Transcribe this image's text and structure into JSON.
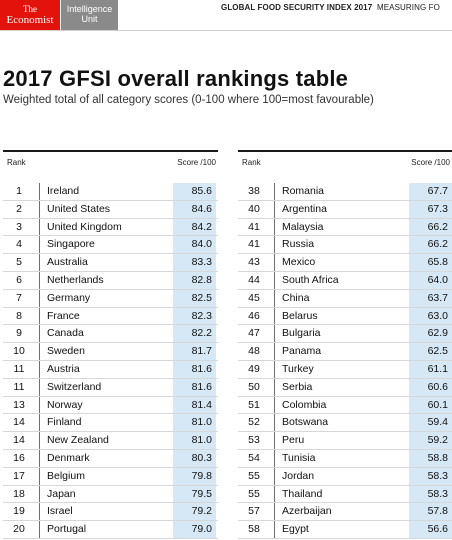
{
  "header": {
    "economist_line1": "The",
    "economist_line2": "Economist",
    "eiu_line1": "Intelligence",
    "eiu_line2": "Unit",
    "doc_title": "GLOBAL FOOD SECURITY INDEX 2017",
    "doc_subtitle": "MEASURING FO"
  },
  "title": "2017 GFSI overall rankings table",
  "subtitle": "Weighted total of all category scores (0-100 where 100=most favourable)",
  "columns": {
    "rank": "Rank",
    "score": "Score /100"
  },
  "colors": {
    "economist_red": "#e3120b",
    "eiu_grey": "#8a8a8a",
    "score_bg": "#d6e8f6"
  },
  "left_table": [
    {
      "rank": "1",
      "country": "Ireland",
      "score": "85.6"
    },
    {
      "rank": "2",
      "country": "United States",
      "score": "84.6"
    },
    {
      "rank": "3",
      "country": "United Kingdom",
      "score": "84.2"
    },
    {
      "rank": "4",
      "country": "Singapore",
      "score": "84.0"
    },
    {
      "rank": "5",
      "country": "Australia",
      "score": "83.3"
    },
    {
      "rank": "6",
      "country": "Netherlands",
      "score": "82.8"
    },
    {
      "rank": "7",
      "country": "Germany",
      "score": "82.5"
    },
    {
      "rank": "8",
      "country": "France",
      "score": "82.3"
    },
    {
      "rank": "9",
      "country": "Canada",
      "score": "82.2"
    },
    {
      "rank": "10",
      "country": "Sweden",
      "score": "81.7"
    },
    {
      "rank": "11",
      "country": "Austria",
      "score": "81.6"
    },
    {
      "rank": "11",
      "country": "Switzerland",
      "score": "81.6"
    },
    {
      "rank": "13",
      "country": "Norway",
      "score": "81.4"
    },
    {
      "rank": "14",
      "country": "Finland",
      "score": "81.0"
    },
    {
      "rank": "14",
      "country": "New Zealand",
      "score": "81.0"
    },
    {
      "rank": "16",
      "country": "Denmark",
      "score": "80.3"
    },
    {
      "rank": "17",
      "country": "Belgium",
      "score": "79.8"
    },
    {
      "rank": "18",
      "country": "Japan",
      "score": "79.5"
    },
    {
      "rank": "19",
      "country": "Israel",
      "score": "79.2"
    },
    {
      "rank": "20",
      "country": "Portugal",
      "score": "79.0"
    }
  ],
  "right_table": [
    {
      "rank": "38",
      "country": "Romania",
      "score": "67.7"
    },
    {
      "rank": "40",
      "country": "Argentina",
      "score": "67.3"
    },
    {
      "rank": "41",
      "country": "Malaysia",
      "score": "66.2"
    },
    {
      "rank": "41",
      "country": "Russia",
      "score": "66.2"
    },
    {
      "rank": "43",
      "country": "Mexico",
      "score": "65.8"
    },
    {
      "rank": "44",
      "country": "South Africa",
      "score": "64.0"
    },
    {
      "rank": "45",
      "country": "China",
      "score": "63.7"
    },
    {
      "rank": "46",
      "country": "Belarus",
      "score": "63.0"
    },
    {
      "rank": "47",
      "country": "Bulgaria",
      "score": "62.9"
    },
    {
      "rank": "48",
      "country": "Panama",
      "score": "62.5"
    },
    {
      "rank": "49",
      "country": "Turkey",
      "score": "61.1"
    },
    {
      "rank": "50",
      "country": "Serbia",
      "score": "60.6"
    },
    {
      "rank": "51",
      "country": "Colombia",
      "score": "60.1"
    },
    {
      "rank": "52",
      "country": "Botswana",
      "score": "59.4"
    },
    {
      "rank": "53",
      "country": "Peru",
      "score": "59.2"
    },
    {
      "rank": "54",
      "country": "Tunisia",
      "score": "58.8"
    },
    {
      "rank": "55",
      "country": "Jordan",
      "score": "58.3"
    },
    {
      "rank": "55",
      "country": "Thailand",
      "score": "58.3"
    },
    {
      "rank": "57",
      "country": "Azerbaijan",
      "score": "57.8"
    },
    {
      "rank": "58",
      "country": "Egypt",
      "score": "56.6"
    }
  ]
}
